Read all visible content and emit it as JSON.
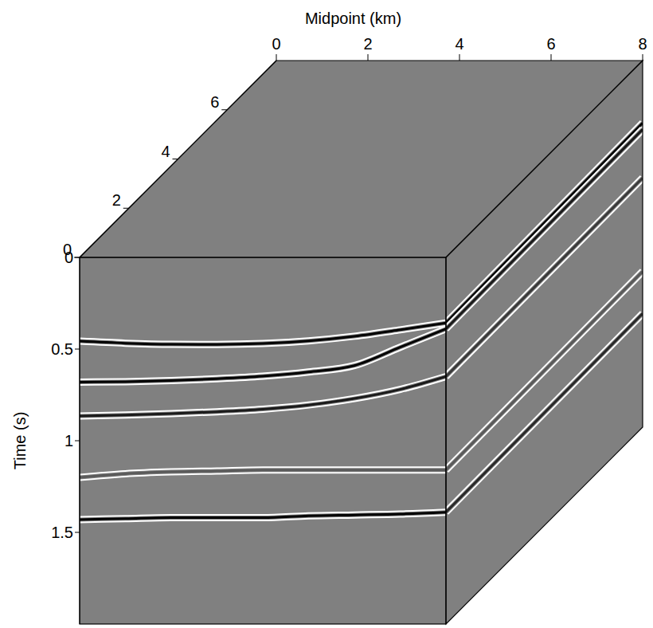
{
  "chart_data": {
    "type": "cube",
    "x_label": "Midpoint (km)",
    "y_label": "Time (s)",
    "color": "#808080",
    "xlim": [
      0,
      8
    ],
    "xticks": [
      0,
      2,
      4,
      6,
      8
    ],
    "ylim": [
      0,
      2
    ],
    "yticks": [
      0,
      0.5,
      1,
      1.5
    ],
    "zlim": [
      0,
      8
    ],
    "zticks": [
      0,
      2,
      4,
      6
    ],
    "x": [
      0,
      1,
      2,
      3,
      4,
      5,
      6,
      7,
      8
    ],
    "series": [
      {
        "color": "#000000",
        "values": [
          0.457,
          0.468,
          0.474,
          0.475,
          0.47,
          0.455,
          0.43,
          0.395,
          0.357
        ]
      },
      {
        "color": "#000000",
        "values": [
          0.68,
          0.678,
          0.672,
          0.662,
          0.648,
          0.625,
          0.59,
          0.49,
          0.39
        ]
      },
      {
        "color": "#1a1a1a",
        "values": [
          0.865,
          0.86,
          0.852,
          0.842,
          0.828,
          0.805,
          0.77,
          0.72,
          0.65
        ]
      },
      {
        "color": "#5a5a5a",
        "values": [
          1.2,
          1.18,
          1.17,
          1.165,
          1.16,
          1.16,
          1.16,
          1.16,
          1.16
        ]
      },
      {
        "color": "#000000",
        "values": [
          1.43,
          1.425,
          1.42,
          1.42,
          1.42,
          1.41,
          1.405,
          1.4,
          1.39
        ]
      }
    ],
    "side_panel": {
      "z": [
        0,
        8
      ],
      "series": [
        {
          "color": "#000000",
          "values": [
            0.357,
            0.34
          ]
        },
        {
          "color": "#1a1a1a",
          "values": [
            0.39,
            0.375
          ]
        },
        {
          "color": "#3a3a3a",
          "values": [
            0.65,
            0.64
          ]
        },
        {
          "color": "#5a5a5a",
          "values": [
            1.16,
            1.15
          ]
        },
        {
          "color": "#2a2a2a",
          "values": [
            1.39,
            1.38
          ]
        }
      ]
    }
  }
}
